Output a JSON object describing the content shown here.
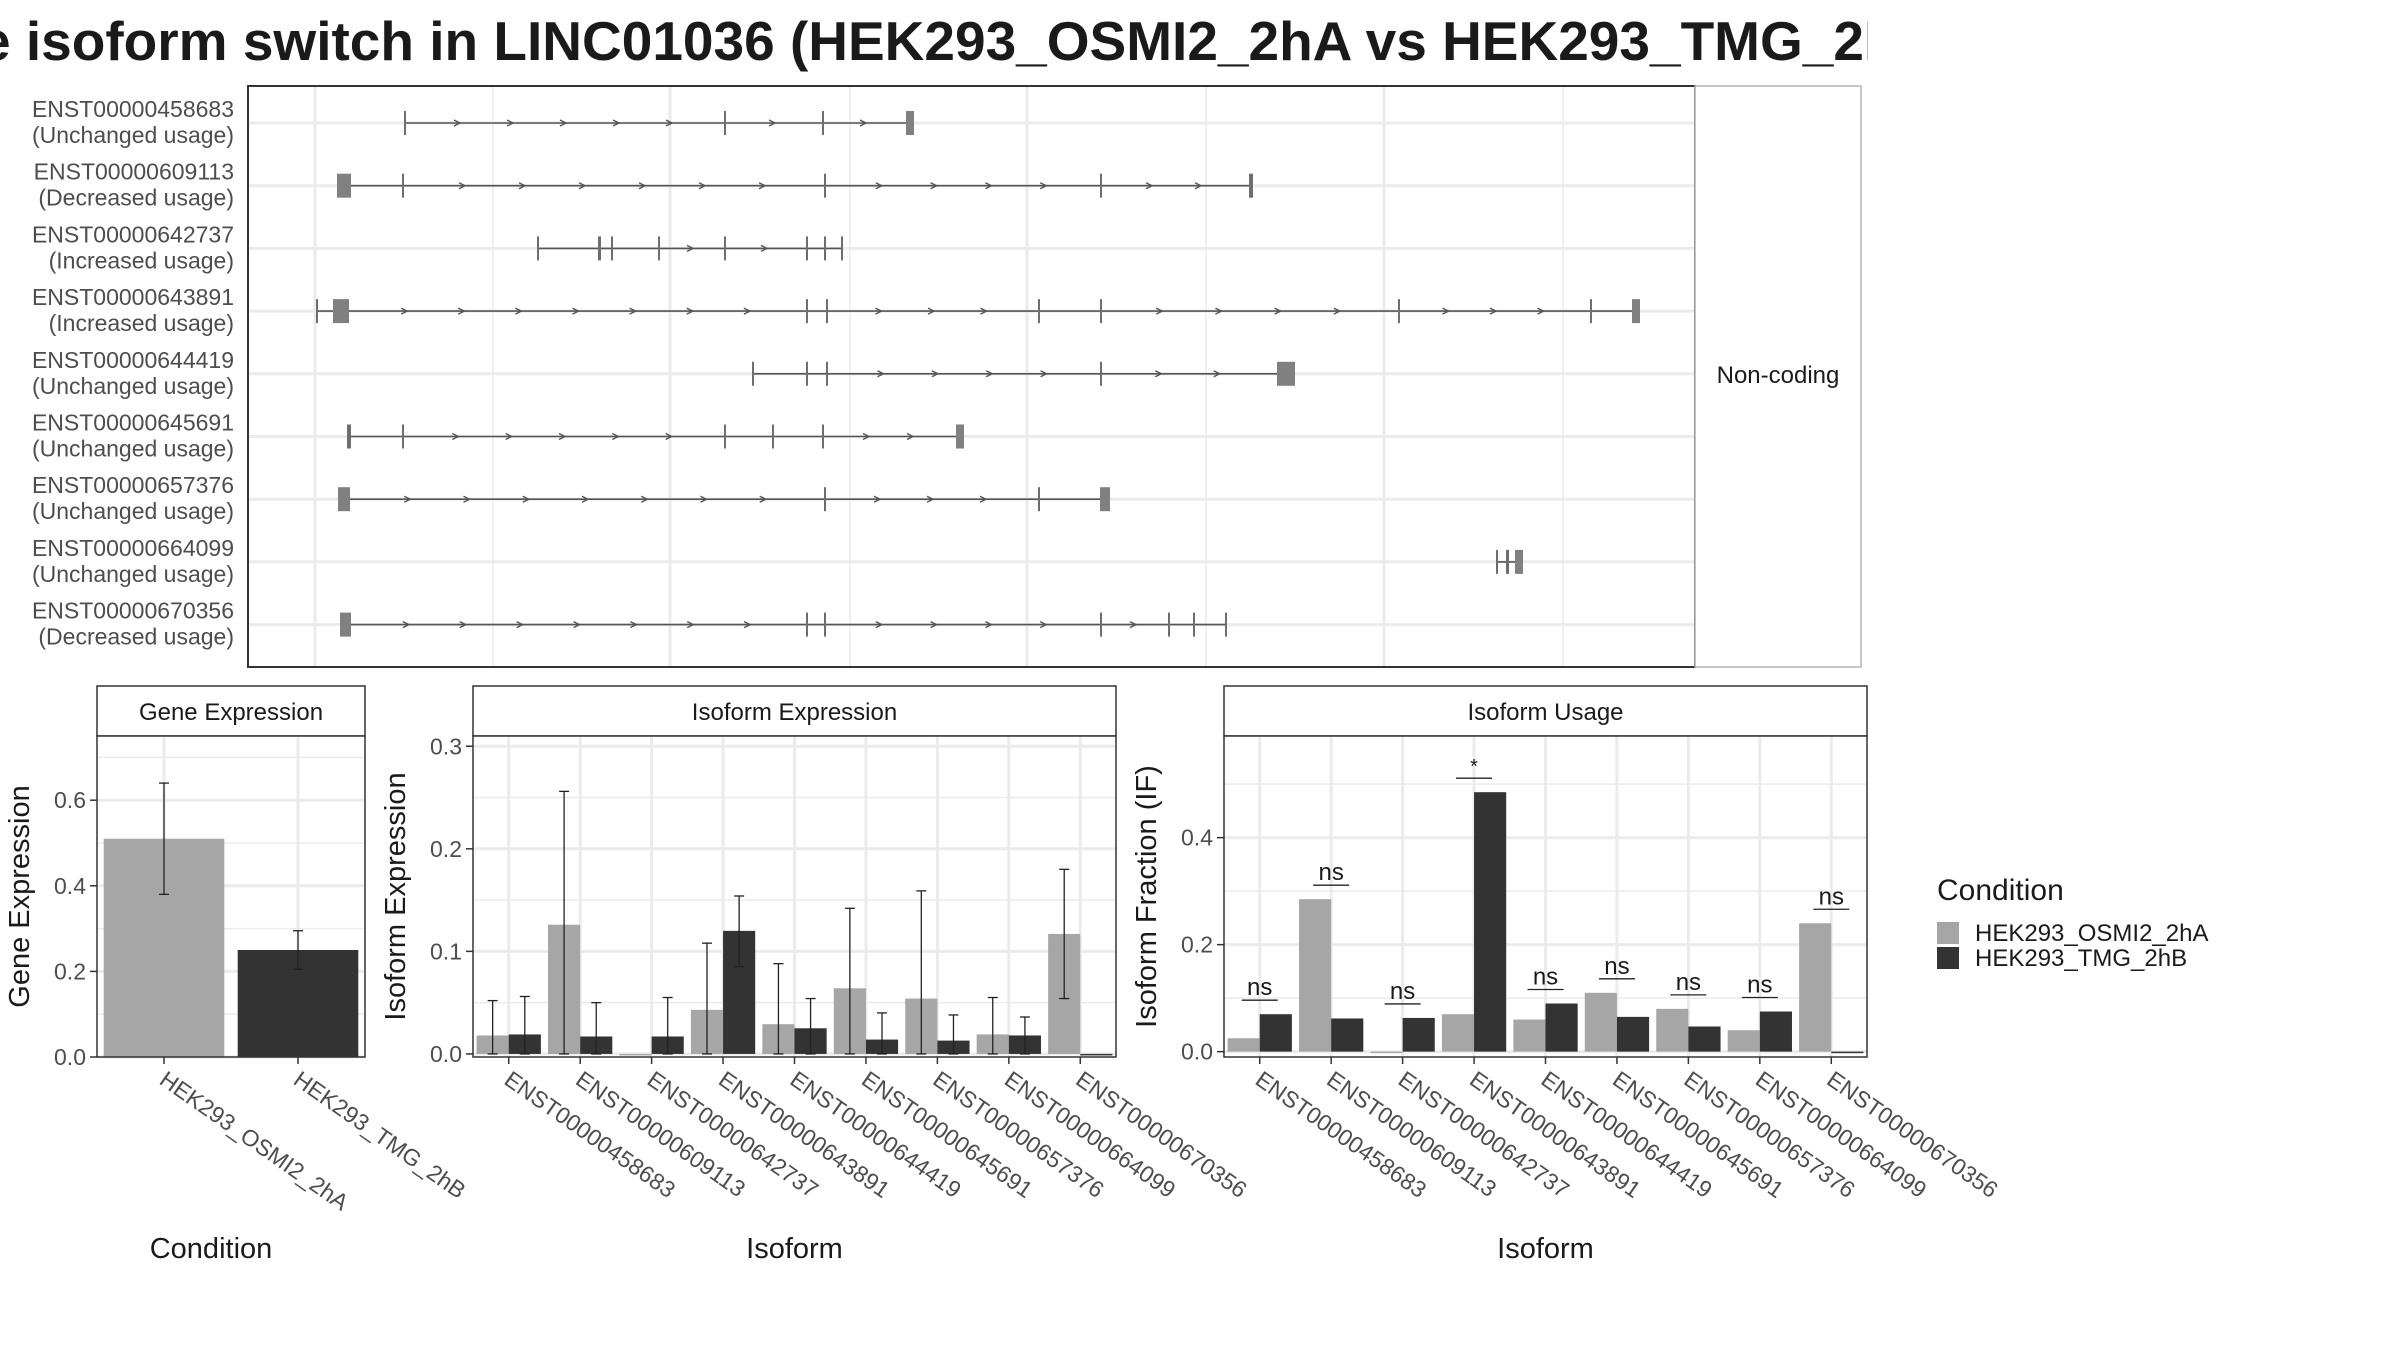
{
  "title": "e isoform switch in LINC01036 (HEK293_OSMI2_2hA vs HEK293_TMG_2I",
  "colors": {
    "HEK293_OSMI2_2hA": "#a6a6a6",
    "HEK293_TMG_2hB": "#333333",
    "exon": "#808080",
    "grid": "#ebebeb",
    "panel_border": "#333333",
    "strip_fill": "#ffffff"
  },
  "chart_data": [
    {
      "type": "gene-structure",
      "panel_label": "Non-coding",
      "isoforms": [
        {
          "id": "ENST00000458683",
          "status": "(Unchanged usage)"
        },
        {
          "id": "ENST00000609113",
          "status": "(Decreased usage)"
        },
        {
          "id": "ENST00000642737",
          "status": "(Increased usage)"
        },
        {
          "id": "ENST00000643891",
          "status": "(Increased usage)"
        },
        {
          "id": "ENST00000644419",
          "status": "(Unchanged usage)"
        },
        {
          "id": "ENST00000645691",
          "status": "(Unchanged usage)"
        },
        {
          "id": "ENST00000657376",
          "status": "(Unchanged usage)"
        },
        {
          "id": "ENST00000664099",
          "status": "(Unchanged usage)"
        },
        {
          "id": "ENST00000670356",
          "status": "(Decreased usage)"
        }
      ]
    },
    {
      "type": "bar",
      "title": "Gene Expression",
      "xlabel": "Condition",
      "ylabel": "Gene Expression",
      "ylim": [
        0,
        0.75
      ],
      "yticks": [
        "0.0",
        "0.2",
        "0.4",
        "0.6"
      ],
      "categories": [
        "HEK293_OSMI2_2hA",
        "HEK293_TMG_2hB"
      ],
      "values": [
        0.51,
        0.25
      ],
      "error_low": [
        0.38,
        0.205
      ],
      "error_high": [
        0.64,
        0.295
      ]
    },
    {
      "type": "bar",
      "title": "Isoform Expression",
      "xlabel": "Isoform",
      "ylabel": "Isoform Expression",
      "ylim": [
        -0.003,
        0.31
      ],
      "yticks": [
        "0.0",
        "0.1",
        "0.2",
        "0.3"
      ],
      "categories": [
        "ENST00000458683",
        "ENST00000609113",
        "ENST00000642737",
        "ENST00000643891",
        "ENST00000644419",
        "ENST00000645691",
        "ENST00000657376",
        "ENST00000664099",
        "ENST00000670356"
      ],
      "series": [
        {
          "name": "HEK293_OSMI2_2hA",
          "values": [
            0.018,
            0.126,
            0.0,
            0.043,
            0.029,
            0.064,
            0.054,
            0.019,
            0.117
          ],
          "error_low": [
            0.0,
            0.0,
            0.0,
            0.0,
            0.0,
            0.0,
            0.0,
            0.0,
            0.054
          ],
          "error_high": [
            0.052,
            0.256,
            0.0,
            0.108,
            0.088,
            0.142,
            0.159,
            0.055,
            0.18
          ]
        },
        {
          "name": "HEK293_TMG_2hB",
          "values": [
            0.019,
            0.017,
            0.017,
            0.12,
            0.025,
            0.014,
            0.013,
            0.018,
            0.0
          ],
          "error_low": [
            0.0,
            0.0,
            0.0,
            0.085,
            0.0,
            0.0,
            0.0,
            0.0,
            0.0
          ],
          "error_high": [
            0.056,
            0.05,
            0.055,
            0.154,
            0.054,
            0.04,
            0.038,
            0.036,
            0.0
          ]
        }
      ]
    },
    {
      "type": "bar",
      "title": "Isoform Usage",
      "xlabel": "Isoform",
      "ylabel": "Isoform Fraction (IF)",
      "ylim": [
        -0.01,
        0.59
      ],
      "yticks": [
        "0.0",
        "0.2",
        "0.4"
      ],
      "categories": [
        "ENST00000458683",
        "ENST00000609113",
        "ENST00000642737",
        "ENST00000643891",
        "ENST00000644419",
        "ENST00000645691",
        "ENST00000657376",
        "ENST00000664099",
        "ENST00000670356"
      ],
      "series": [
        {
          "name": "HEK293_OSMI2_2hA",
          "values": [
            0.025,
            0.285,
            0.0,
            0.07,
            0.06,
            0.11,
            0.08,
            0.04,
            0.24
          ]
        },
        {
          "name": "HEK293_TMG_2hB",
          "values": [
            0.07,
            0.062,
            0.063,
            0.485,
            0.09,
            0.065,
            0.047,
            0.075,
            0.0
          ]
        }
      ],
      "significance": [
        "ns",
        "ns",
        "ns",
        "*",
        "ns",
        "ns",
        "ns",
        "ns",
        "ns"
      ]
    }
  ],
  "legend": {
    "title": "Condition",
    "entries": [
      "HEK293_OSMI2_2hA",
      "HEK293_TMG_2hB"
    ]
  }
}
